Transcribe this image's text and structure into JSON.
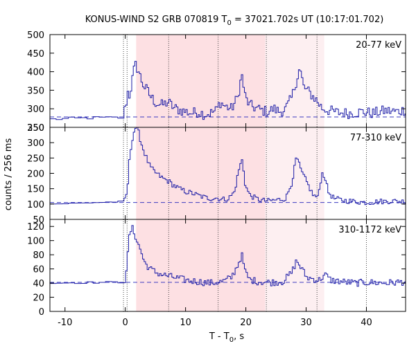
{
  "chart_data": {
    "type": "line",
    "title": "KONUS-WIND S2 GRB 070819 T₀ = 37021.702s UT (10:17:01.702)",
    "title_parts": {
      "main": "KONUS-WIND S2 GRB 070819 T",
      "sub": "0",
      "rest": " = 37021.702s UT (10:17:01.702)"
    },
    "xlabel_parts": {
      "main": "T - T",
      "sub": "0",
      "rest": ", s"
    },
    "ylabel": "counts / 256 ms",
    "xlim": [
      -12.5,
      46.5
    ],
    "x_ticks": [
      -10,
      0,
      10,
      20,
      30,
      40
    ],
    "x_tick_labels": [
      "-10",
      "0",
      "10",
      "20",
      "30",
      "40"
    ],
    "line_color": "#1a1aa6",
    "shading": [
      {
        "range": [
          1.8,
          23.2
        ],
        "color": "#fde0e3",
        "opacity": 1.0
      },
      {
        "range": [
          23.2,
          33.0
        ],
        "color": "#fdeff1",
        "opacity": 1.0
      }
    ],
    "vertical_lines": [
      -0.3,
      0.3,
      7.2,
      15.4,
      23.4,
      31.8,
      40.0
    ],
    "panels": [
      {
        "label": "20-77 keV",
        "ylim": [
          250,
          500
        ],
        "yticks": [
          250,
          300,
          350,
          400,
          450,
          500
        ],
        "ytick_labels": [
          "250",
          "300",
          "350",
          "400",
          "450",
          "500"
        ],
        "extra_tick_label": "",
        "background": 278,
        "anchors": [
          [
            -12.5,
            272
          ],
          [
            -5,
            276
          ],
          [
            -3,
            276
          ],
          [
            -1,
            276
          ],
          [
            -0.3,
            290
          ],
          [
            0,
            315
          ],
          [
            0.3,
            345
          ],
          [
            0.6,
            335
          ],
          [
            1,
            375
          ],
          [
            1.5,
            420
          ],
          [
            2.0,
            405
          ],
          [
            2.5,
            380
          ],
          [
            3,
            360
          ],
          [
            3.5,
            350
          ],
          [
            4,
            335
          ],
          [
            4.5,
            325
          ],
          [
            5,
            315
          ],
          [
            6,
            310
          ],
          [
            7,
            318
          ],
          [
            8,
            302
          ],
          [
            9,
            296
          ],
          [
            10,
            292
          ],
          [
            11,
            288
          ],
          [
            12,
            292
          ],
          [
            13,
            285
          ],
          [
            14,
            288
          ],
          [
            15,
            296
          ],
          [
            15.6,
            318
          ],
          [
            16.5,
            306
          ],
          [
            17.5,
            300
          ],
          [
            18.5,
            330
          ],
          [
            19.2,
            392
          ],
          [
            19.8,
            330
          ],
          [
            20.5,
            310
          ],
          [
            21.5,
            302
          ],
          [
            22.5,
            296
          ],
          [
            23.5,
            292
          ],
          [
            24.5,
            300
          ],
          [
            25.5,
            292
          ],
          [
            26.5,
            300
          ],
          [
            27.5,
            330
          ],
          [
            28.3,
            378
          ],
          [
            28.8,
            410
          ],
          [
            29.5,
            358
          ],
          [
            30.5,
            342
          ],
          [
            31.5,
            325
          ],
          [
            32.5,
            302
          ],
          [
            33.5,
            296
          ],
          [
            35,
            290
          ],
          [
            37,
            288
          ],
          [
            39,
            292
          ],
          [
            41,
            288
          ],
          [
            43,
            295
          ],
          [
            45,
            292
          ],
          [
            46.5,
            298
          ]
        ],
        "amp_noise": 15
      },
      {
        "label": "77-310 keV",
        "ylim": [
          50,
          350
        ],
        "yticks": [
          50,
          100,
          150,
          200,
          250,
          300,
          350
        ],
        "ytick_labels": [
          "50",
          "100",
          "150",
          "200",
          "250",
          "300",
          "350"
        ],
        "extra_tick_label": "",
        "background": 105,
        "anchors": [
          [
            -12.5,
            100
          ],
          [
            -5,
            105
          ],
          [
            -1,
            108
          ],
          [
            -0.2,
            112
          ],
          [
            0.2,
            140
          ],
          [
            0.6,
            250
          ],
          [
            1.0,
            310
          ],
          [
            1.5,
            350
          ],
          [
            2.0,
            340
          ],
          [
            2.5,
            300
          ],
          [
            3,
            270
          ],
          [
            4,
            220
          ],
          [
            5,
            200
          ],
          [
            6,
            185
          ],
          [
            7,
            175
          ],
          [
            8,
            160
          ],
          [
            9,
            148
          ],
          [
            10,
            140
          ],
          [
            11,
            135
          ],
          [
            12,
            128
          ],
          [
            13,
            122
          ],
          [
            14,
            118
          ],
          [
            15,
            120
          ],
          [
            16,
            115
          ],
          [
            17,
            118
          ],
          [
            18,
            140
          ],
          [
            18.8,
            220
          ],
          [
            19.3,
            245
          ],
          [
            19.8,
            160
          ],
          [
            20.5,
            130
          ],
          [
            21.5,
            118
          ],
          [
            22.5,
            112
          ],
          [
            23.5,
            110
          ],
          [
            24.5,
            112
          ],
          [
            25.5,
            115
          ],
          [
            26.5,
            118
          ],
          [
            27.5,
            170
          ],
          [
            28.3,
            255
          ],
          [
            29,
            210
          ],
          [
            30,
            170
          ],
          [
            31,
            130
          ],
          [
            31.8,
            120
          ],
          [
            32.5,
            200
          ],
          [
            33,
            190
          ],
          [
            33.5,
            140
          ],
          [
            34.5,
            118
          ],
          [
            36,
            112
          ],
          [
            38,
            108
          ],
          [
            40,
            105
          ],
          [
            42,
            108
          ],
          [
            44,
            110
          ],
          [
            46.5,
            108
          ]
        ],
        "amp_noise": 9
      },
      {
        "label": "310-1172 keV",
        "ylim": [
          0,
          130
        ],
        "yticks": [
          0,
          20,
          40,
          60,
          80,
          100,
          120
        ],
        "ytick_labels": [
          "0",
          "20",
          "40",
          "60",
          "80",
          "100",
          "120"
        ],
        "extra_tick_label": "",
        "background": 41,
        "anchors": [
          [
            -12.5,
            40
          ],
          [
            -5,
            41
          ],
          [
            -1,
            41
          ],
          [
            -0.2,
            45
          ],
          [
            0.2,
            70
          ],
          [
            0.6,
            110
          ],
          [
            1.0,
            118
          ],
          [
            1.5,
            108
          ],
          [
            2.0,
            95
          ],
          [
            2.5,
            85
          ],
          [
            3,
            70
          ],
          [
            4,
            60
          ],
          [
            5,
            55
          ],
          [
            6,
            52
          ],
          [
            7,
            50
          ],
          [
            8,
            48
          ],
          [
            9,
            46
          ],
          [
            10,
            44
          ],
          [
            12,
            42
          ],
          [
            14,
            40
          ],
          [
            16,
            42
          ],
          [
            17.5,
            48
          ],
          [
            18.5,
            65
          ],
          [
            19.2,
            80
          ],
          [
            19.8,
            55
          ],
          [
            20.5,
            45
          ],
          [
            22,
            42
          ],
          [
            24,
            41
          ],
          [
            26,
            42
          ],
          [
            27.5,
            55
          ],
          [
            28.3,
            72
          ],
          [
            29,
            62
          ],
          [
            30,
            48
          ],
          [
            32,
            44
          ],
          [
            33,
            52
          ],
          [
            34,
            44
          ],
          [
            36,
            42
          ],
          [
            38,
            40
          ],
          [
            40,
            41
          ],
          [
            43,
            40
          ],
          [
            46.5,
            42
          ]
        ],
        "amp_noise": 5
      }
    ]
  }
}
